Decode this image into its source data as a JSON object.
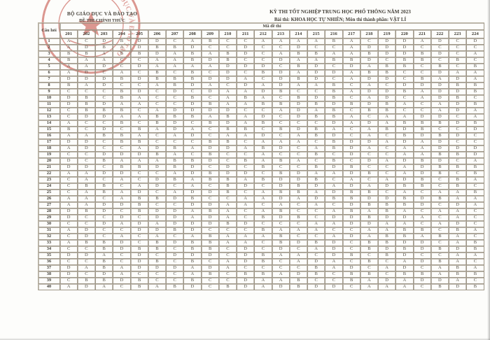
{
  "header": {
    "ministry": "BỘ GIÁO DỤC VÀ ĐÀO TẠO",
    "official": "ĐỀ THI CHÍNH THỨC",
    "exam_title": "KỲ THI TỐT NGHIỆP TRUNG HỌC PHỔ THÔNG NĂM 2023",
    "subject_line": "Bài thi: KHOA HỌC TỰ NHIÊN; Môn thi thành phần: VẬT LÍ"
  },
  "stamp": {
    "color": "#c0443a",
    "ring_text": "BỘ GIÁO DỤC VÀ ĐÀO TẠO"
  },
  "table": {
    "question_col_header": "Câu hỏi",
    "code_group_header": "Mã đề thi",
    "codes": [
      "201",
      "202",
      "203",
      "204",
      "205",
      "206",
      "207",
      "208",
      "209",
      "210",
      "211",
      "212",
      "213",
      "214",
      "215",
      "216",
      "217",
      "218",
      "219",
      "220",
      "221",
      "222",
      "223",
      "224"
    ],
    "rows": [
      {
        "q": "1",
        "answers": "ACDBDDCABCCAAAABACDDADCD"
      },
      {
        "q": "2",
        "answers": "ADBADBBDCCDCCDCCADDDCCCC"
      },
      {
        "q": "3",
        "answers": "BBABBDABABDCABBAABDDBDCA"
      },
      {
        "q": "4",
        "answers": "BAACCAABDBCCDAABBDCBBCBC"
      },
      {
        "q": "5",
        "answers": "AADCDAAAADDDCBDCDABBCBCB"
      },
      {
        "q": "6",
        "answers": "ADCACBCBCDCBDADDABBCCDAA"
      },
      {
        "q": "7",
        "answers": "DDDBDBBBDDACDBDCADDCBADA"
      },
      {
        "q": "8",
        "answers": "BADCCABDACDADAABCACDDDBB"
      },
      {
        "q": "9",
        "answers": "CCCBDCDCDAADBCCBADDBADDB"
      },
      {
        "q": "10",
        "answers": "DBCBACCBCABACBDBCADCADBC"
      },
      {
        "q": "11",
        "answers": "DBDAACCDBAABBDBDBDBACADB"
      },
      {
        "q": "12",
        "answers": "CBBBCADDDDCCADABCBBCCADA"
      },
      {
        "q": "13",
        "answers": "CDDAABBBABADCDBBACAADDCA"
      },
      {
        "q": "14",
        "answers": "ACCBCBDCBDABCCCDADABBBDB"
      },
      {
        "q": "15",
        "answers": "BCDCBADACBBCBDBACABDBCCD"
      },
      {
        "q": "16",
        "answers": "AABBACADCAADCABDCACBDBDC"
      },
      {
        "q": "17",
        "answers": "DDCBBCCCBBCAAACBDDADADCC"
      },
      {
        "q": "18",
        "answers": "ADCCADBADDABDCABDACAADDD"
      },
      {
        "q": "19",
        "answers": "CCDDDBACBCCACCBCDCCAABBD"
      },
      {
        "q": "20",
        "answers": "DCBAAABBDCBABACBCDADBDCA"
      },
      {
        "q": "21",
        "answers": "DDCBBDBDCDCBCCBDBCCADBBB"
      },
      {
        "q": "22",
        "answers": "AADDCCADBDDCBDAADBCADBCB"
      },
      {
        "q": "23",
        "answers": "CACACDBABBABDDBCACADBCBA"
      },
      {
        "q": "24",
        "answers": "CBBCADCACBDCDBDADADBBCBC"
      },
      {
        "q": "25",
        "answers": "CABADCADDBCABBADBBCACAAB"
      },
      {
        "q": "26",
        "answers": "AACABBDBCCAADADBBDDBDBAA"
      },
      {
        "q": "27",
        "answers": "AADDBCCDDAACACACDBBBDCDA"
      },
      {
        "q": "28",
        "answers": "DBDCBDDABACABCCABABACAAC"
      },
      {
        "q": "29",
        "answers": "DCCDCDDADACBDBCDDBDDACAC"
      },
      {
        "q": "30",
        "answers": "CCDADADDDBDCCCAADDAACADC"
      },
      {
        "q": "31",
        "answers": "ADCCDDBDCCCBAAACCAABBCBA"
      },
      {
        "q": "32",
        "answers": "CDCACACABAAABCCADABBABAC"
      },
      {
        "q": "33",
        "answers": "ABBDCBDBBAACBDBDCBBDDCAB"
      },
      {
        "q": "34",
        "answers": "CCBDBBCBBCDCDCADCBDBDBDB"
      },
      {
        "q": "35",
        "answers": "DDACDCDDDCDBAACDBCBDCCAA"
      },
      {
        "q": "36",
        "answers": "CCBCDBCBCADBCADACBCADBAC"
      },
      {
        "q": "37",
        "answers": "DABADDDADACCCCBADCADCABA"
      },
      {
        "q": "38",
        "answers": "DCDACCCABCBBADBCBBCBBABB"
      },
      {
        "q": "39",
        "answers": "CBBDBCCBCCDAABCCBADADDAC"
      },
      {
        "q": "40",
        "answers": "ADACBABDCBDADBDDCAAACBDB"
      }
    ]
  }
}
